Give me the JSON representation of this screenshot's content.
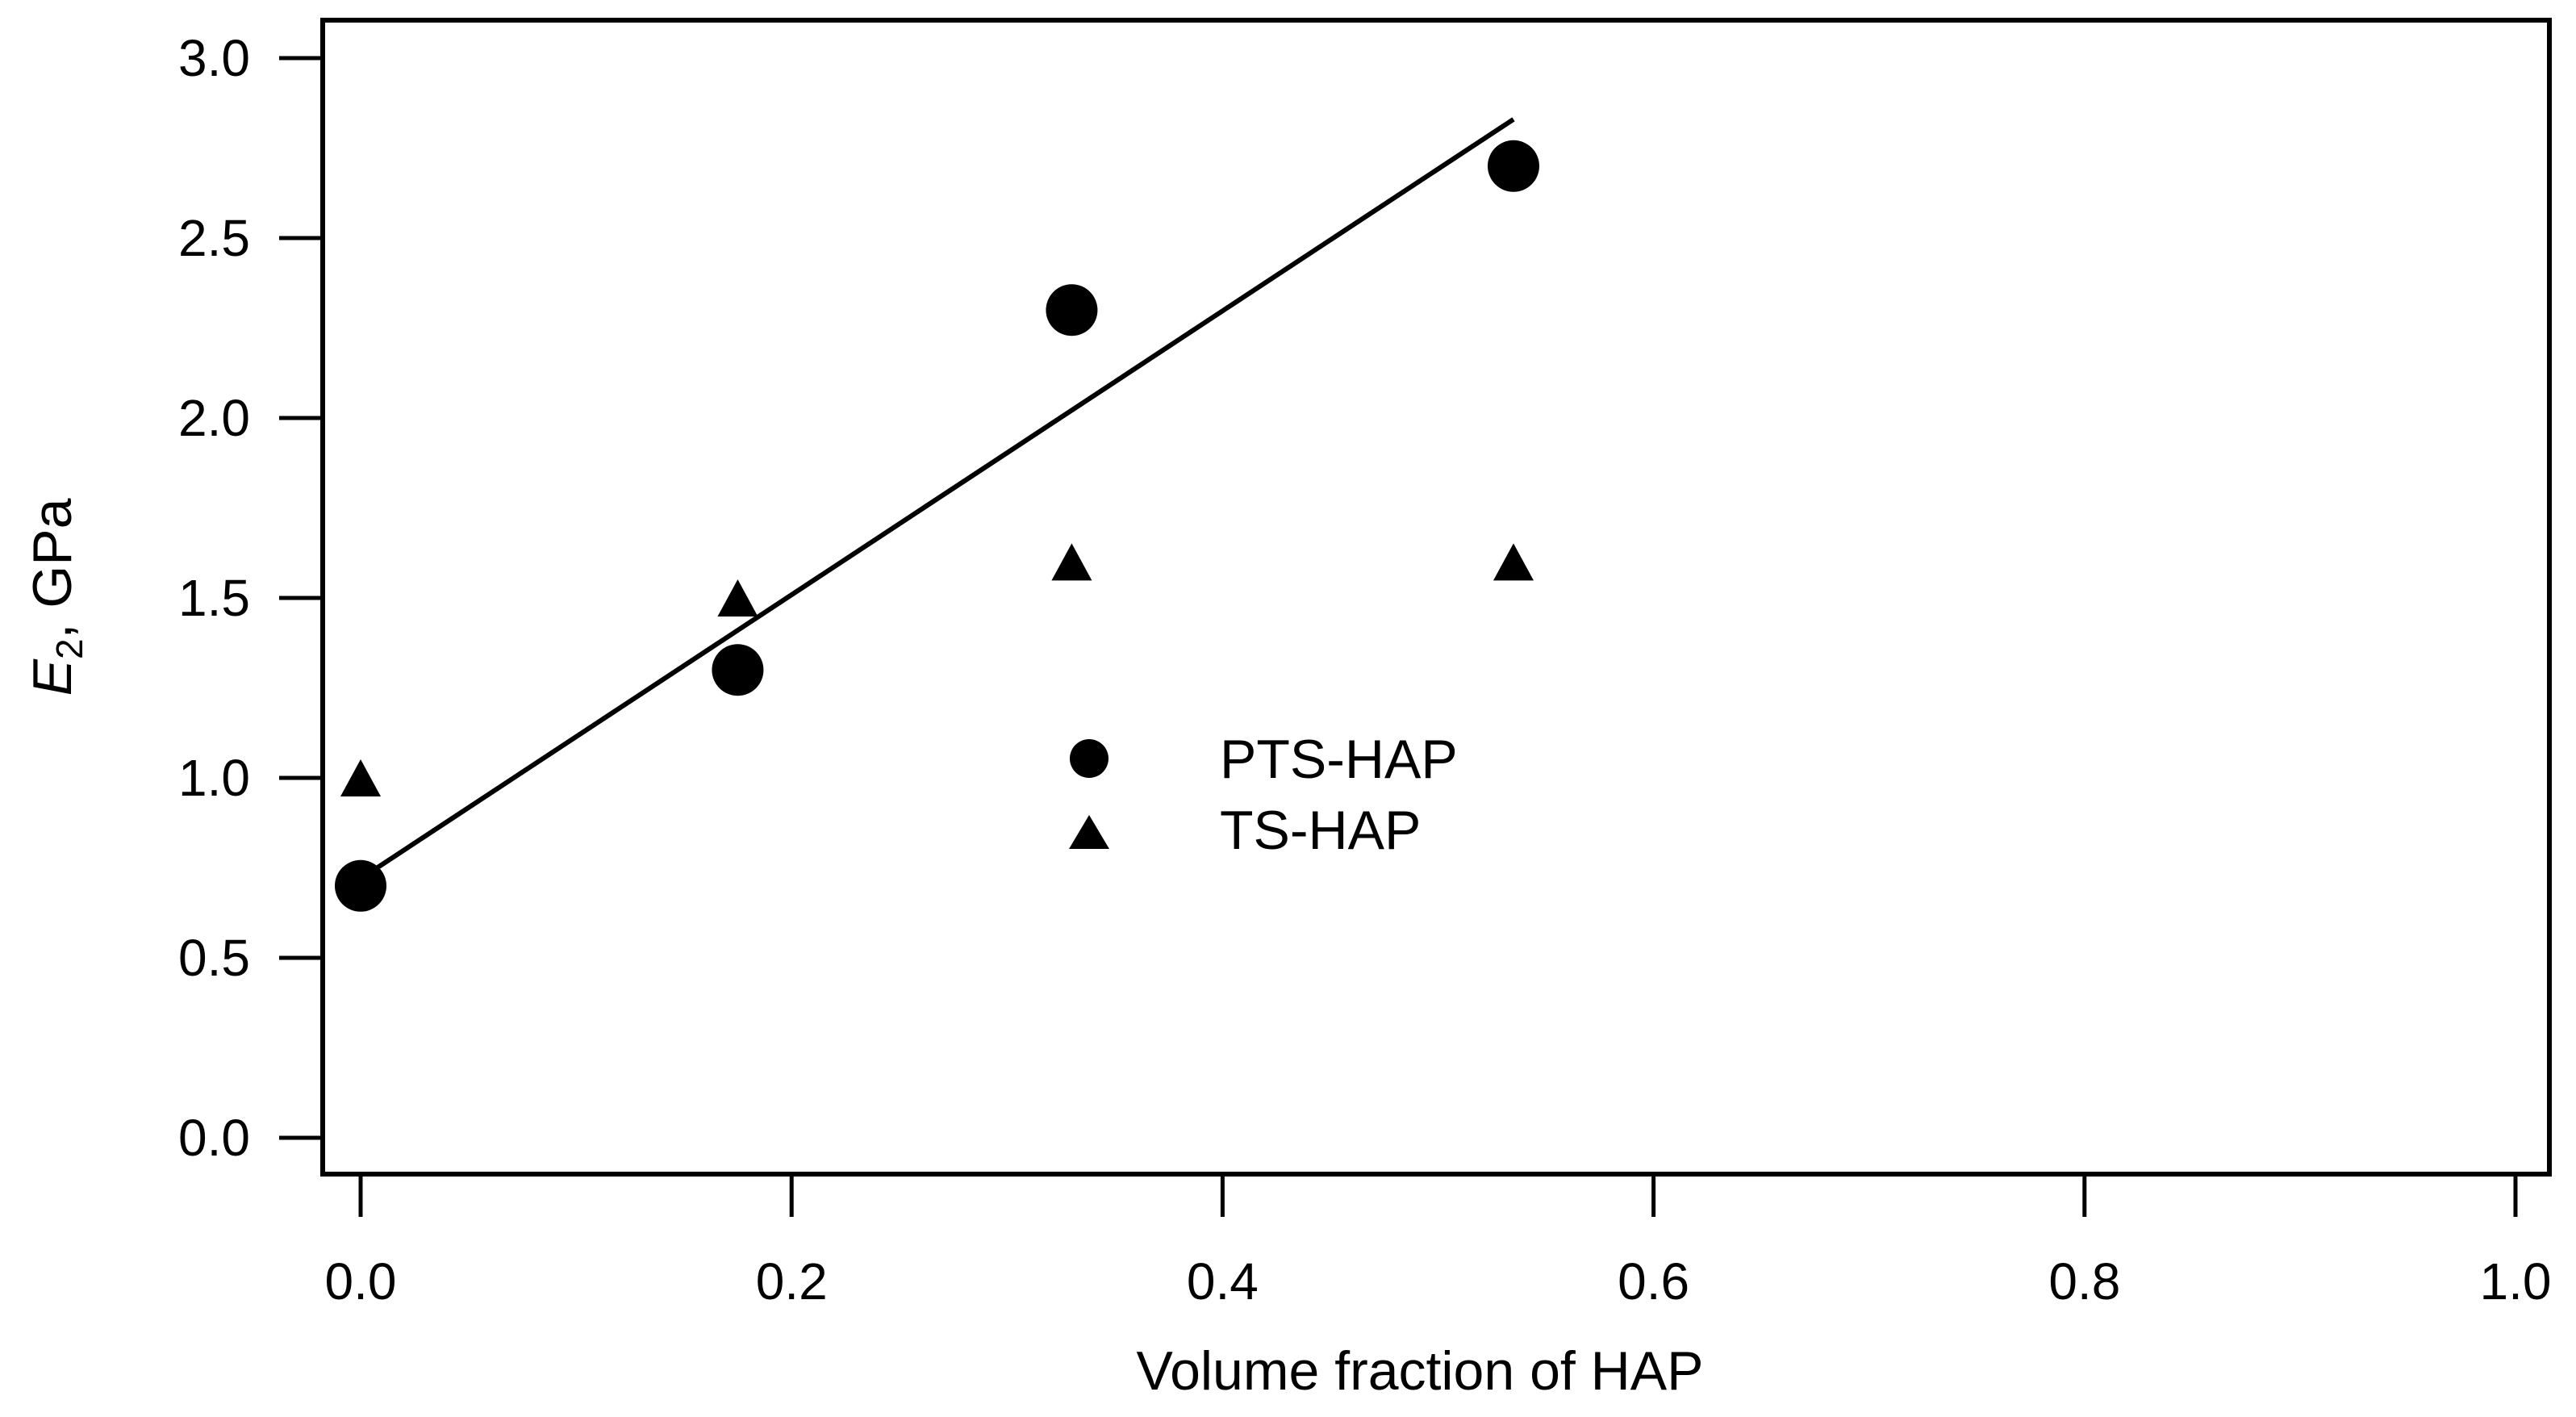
{
  "chart_data": {
    "type": "scatter",
    "title": "",
    "xlabel": "Volume fraction of HAP",
    "ylabel": {
      "symbol": "E",
      "subscript": "2",
      "unit": ", GPa"
    },
    "xlim": [
      0.0,
      1.0
    ],
    "ylim": [
      0.0,
      3.0
    ],
    "xticks": [
      0.0,
      0.2,
      0.4,
      0.6,
      0.8,
      1.0
    ],
    "xtick_labels": [
      "0.0",
      "0.2",
      "0.4",
      "0.6",
      "0.8",
      "1.0"
    ],
    "yticks": [
      0.0,
      0.5,
      1.0,
      1.5,
      2.0,
      2.5,
      3.0
    ],
    "ytick_labels": [
      "0.0",
      "0.5",
      "1.0",
      "1.5",
      "2.0",
      "2.5",
      "3.0"
    ],
    "series": [
      {
        "name": "PTS-HAP",
        "marker": "circle",
        "x": [
          0.0,
          0.175,
          0.33,
          0.535
        ],
        "y": [
          0.7,
          1.3,
          2.3,
          2.7
        ]
      },
      {
        "name": "TS-HAP",
        "marker": "triangle",
        "x": [
          0.0,
          0.175,
          0.33,
          0.535
        ],
        "y": [
          1.0,
          1.5,
          1.6,
          1.6
        ]
      }
    ],
    "fit_line": {
      "series": "PTS-HAP",
      "x": [
        0.0,
        0.535
      ],
      "y": [
        0.72,
        2.83
      ]
    },
    "legend": {
      "position": "center"
    },
    "grid": false,
    "color": "#000000"
  }
}
